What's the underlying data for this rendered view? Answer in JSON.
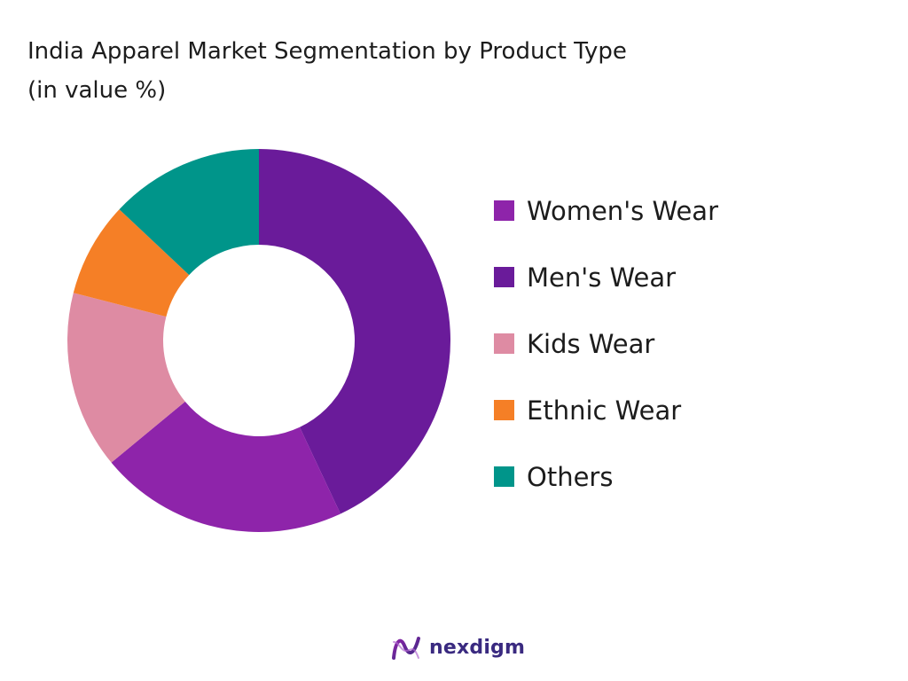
{
  "title": {
    "line1": "India Apparel Market Segmentation by Product Type",
    "line2": "(in value %)"
  },
  "chart_data": {
    "type": "pie",
    "subtype": "donut",
    "categories": [
      "Men's Wear",
      "Women's Wear",
      "Kids Wear",
      "Ethnic Wear",
      "Others"
    ],
    "values": [
      43,
      21,
      15,
      8,
      13
    ],
    "colors": [
      "#6a1b9a",
      "#8e24aa",
      "#de8ba3",
      "#f57f26",
      "#00958a"
    ],
    "legend": {
      "position": "right",
      "entries": [
        {
          "label": "Women's Wear",
          "color": "#8e24aa"
        },
        {
          "label": "Men's Wear",
          "color": "#6a1b9a"
        },
        {
          "label": "Kids Wear",
          "color": "#de8ba3"
        },
        {
          "label": "Ethnic Wear",
          "color": "#f57f26"
        },
        {
          "label": "Others",
          "color": "#00958a"
        }
      ]
    }
  },
  "brand": {
    "name": "nexdigm",
    "icon": "nexdigm-logo-icon"
  }
}
